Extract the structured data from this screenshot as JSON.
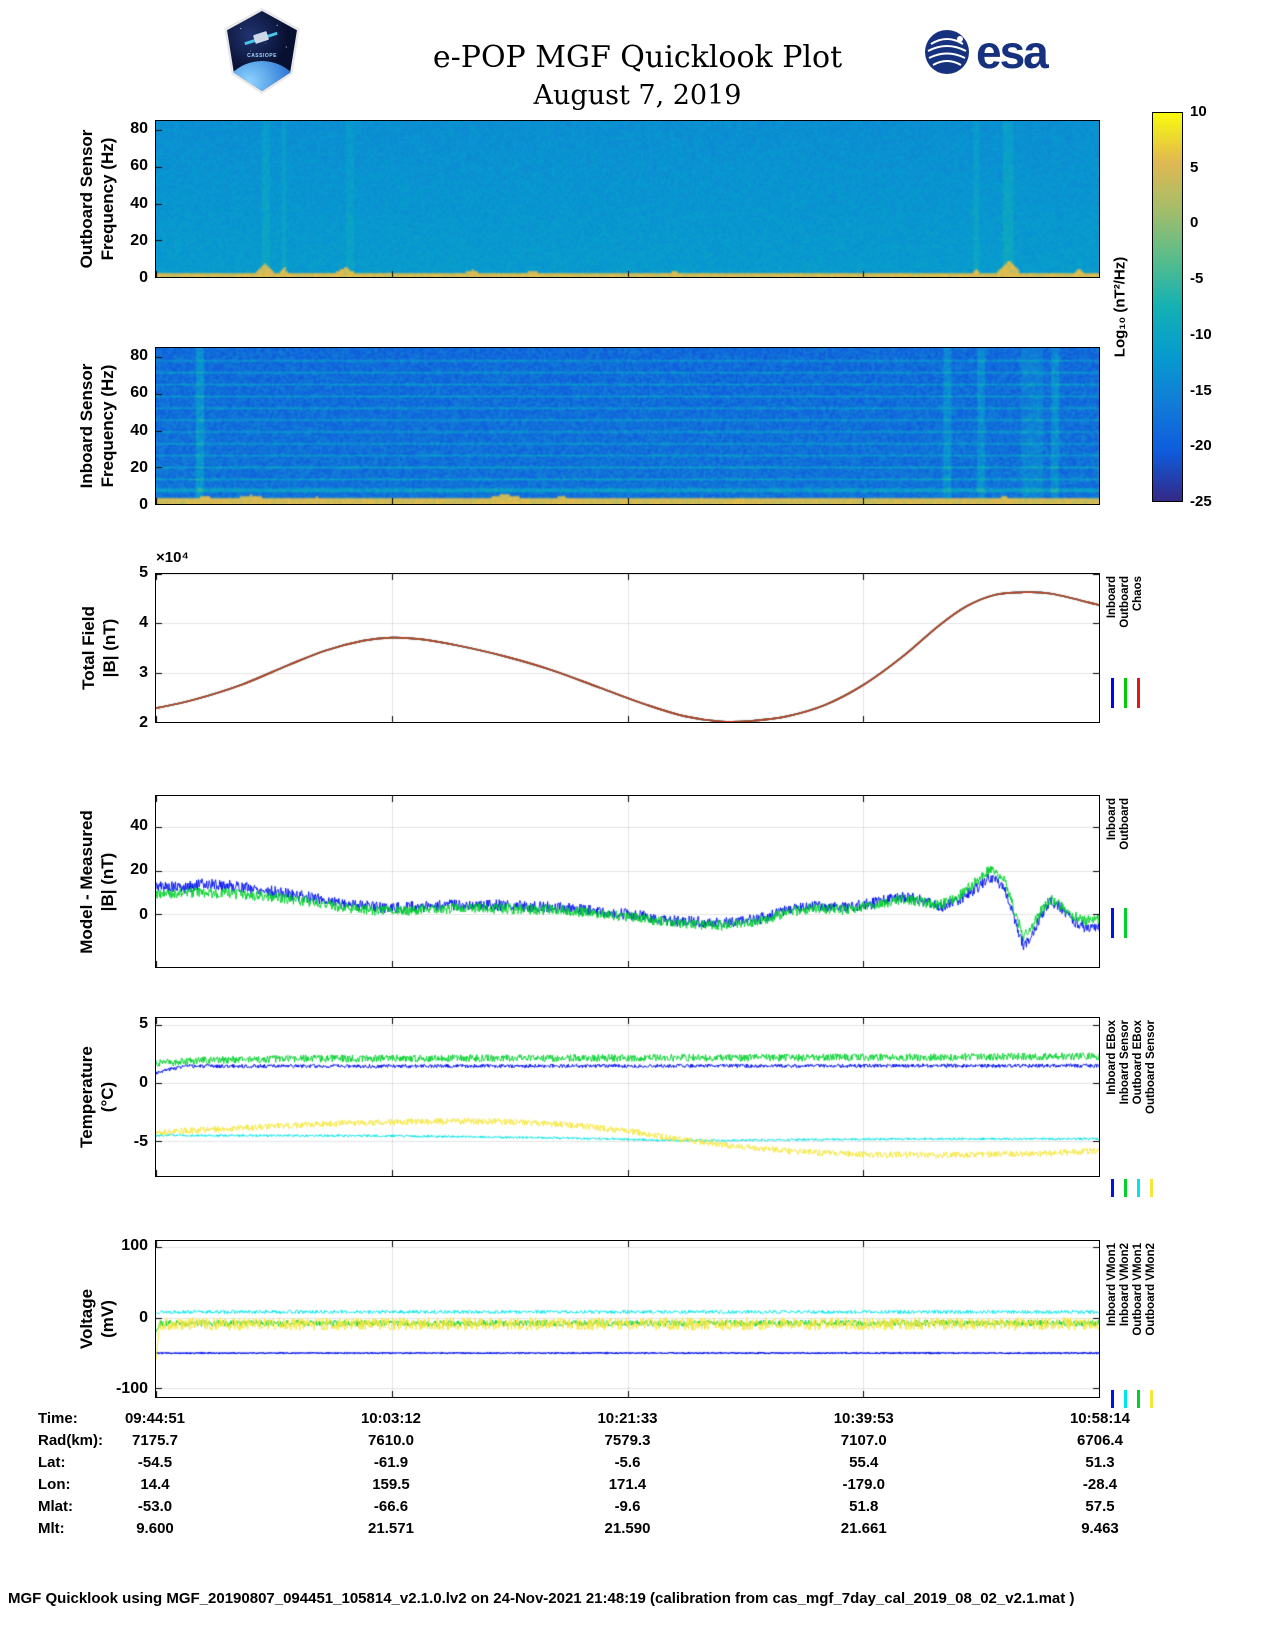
{
  "header": {
    "title": "e-POP MGF Quicklook Plot",
    "date": "August 7, 2019",
    "esa_text": "esa",
    "cassiope_label": "CASSIOPE"
  },
  "colorbar": {
    "label": "Log₁₀ (nT²/Hz)",
    "min": -25,
    "max": 10,
    "ticks": [
      10,
      5,
      0,
      -5,
      -10,
      -15,
      -20,
      -25
    ]
  },
  "chart_data": [
    {
      "id": "outboard_spectrogram",
      "type": "heatmap",
      "ylabel_line1": "Outboard Sensor",
      "ylabel_line2": "Frequency (Hz)",
      "yticks": [
        0,
        20,
        40,
        60,
        80
      ],
      "ylim": [
        0,
        85
      ],
      "value_range": [
        -25,
        10
      ],
      "heatmap": {
        "seed": 11,
        "base": -13.6,
        "grad": 1.8,
        "noise": 1.3,
        "fmax": 85,
        "band_f": 1.8,
        "band_v": 4.5,
        "band_n": 2,
        "hlines": [],
        "vlines": [
          [
            0.115,
            0.004,
            2
          ],
          [
            0.135,
            0.003,
            2
          ],
          [
            0.205,
            0.004,
            1.5
          ],
          [
            0.87,
            0.003,
            2
          ],
          [
            0.905,
            0.005,
            2.5
          ]
        ],
        "bumps": [
          [
            0.115,
            0.01,
            7
          ],
          [
            0.135,
            0.006,
            5
          ],
          [
            0.2,
            0.012,
            5
          ],
          [
            0.335,
            0.012,
            3.5
          ],
          [
            0.4,
            0.012,
            3.2
          ],
          [
            0.55,
            0.008,
            2.8
          ],
          [
            0.87,
            0.005,
            4
          ],
          [
            0.905,
            0.012,
            9
          ],
          [
            0.98,
            0.006,
            4
          ]
        ]
      }
    },
    {
      "id": "inboard_spectrogram",
      "type": "heatmap",
      "ylabel_line1": "Inboard Sensor",
      "ylabel_line2": "Frequency (Hz)",
      "yticks": [
        0,
        20,
        40,
        60,
        80
      ],
      "ylim": [
        0,
        85
      ],
      "value_range": [
        -25,
        10
      ],
      "heatmap": {
        "seed": 23,
        "base": -18.6,
        "grad": 1.2,
        "noise": 2.5,
        "fmax": 85,
        "band_f": 2.4,
        "band_v": 4.2,
        "band_n": 2,
        "hlines": [
          [
            7,
            0.7,
            6
          ],
          [
            13.5,
            0.6,
            5.5
          ],
          [
            20,
            0.6,
            5.5
          ],
          [
            26.5,
            0.6,
            5
          ],
          [
            33,
            0.6,
            5
          ],
          [
            39.5,
            0.6,
            5
          ],
          [
            46,
            0.6,
            5
          ],
          [
            52.5,
            0.6,
            5
          ],
          [
            59,
            0.6,
            5
          ],
          [
            65.5,
            0.6,
            5
          ],
          [
            72,
            0.6,
            5
          ],
          [
            78.5,
            0.6,
            5
          ]
        ],
        "vlines": [
          [
            0.045,
            0.004,
            5
          ],
          [
            0.84,
            0.004,
            4
          ],
          [
            0.875,
            0.004,
            4
          ],
          [
            0.93,
            0.012,
            2.5
          ],
          [
            0.955,
            0.004,
            4
          ]
        ],
        "bumps": [
          [
            0.05,
            0.02,
            4
          ],
          [
            0.1,
            0.03,
            4.5
          ],
          [
            0.17,
            0.02,
            3.5
          ],
          [
            0.28,
            0.015,
            3
          ],
          [
            0.37,
            0.03,
            5
          ],
          [
            0.43,
            0.02,
            4
          ],
          [
            0.62,
            0.01,
            3
          ],
          [
            0.9,
            0.01,
            4
          ]
        ]
      }
    },
    {
      "id": "total_field",
      "type": "line",
      "ylabel_line1": "Total Field",
      "ylabel_line2": "|B| (nT)",
      "exponent_label": "×10⁴",
      "yticks": [
        2,
        3,
        4,
        5
      ],
      "ylim": [
        2,
        5
      ],
      "draw_colors": [
        "#0000ff",
        "#00bb22",
        "#bf3a20"
      ],
      "legend": [
        {
          "label": "Inboard",
          "color": "#0000ff"
        },
        {
          "label": "Outboard",
          "color": "#00cc00"
        },
        {
          "label": "Chaos",
          "color": "#e01818"
        }
      ],
      "series": [
        {
          "name": "Total field model/measured overlay",
          "width": 1.7,
          "points": [
            [
              0,
              2.28
            ],
            [
              0.04,
              2.45
            ],
            [
              0.09,
              2.75
            ],
            [
              0.14,
              3.15
            ],
            [
              0.18,
              3.45
            ],
            [
              0.22,
              3.65
            ],
            [
              0.25,
              3.71
            ],
            [
              0.28,
              3.68
            ],
            [
              0.32,
              3.55
            ],
            [
              0.37,
              3.33
            ],
            [
              0.42,
              3.05
            ],
            [
              0.47,
              2.7
            ],
            [
              0.52,
              2.35
            ],
            [
              0.56,
              2.12
            ],
            [
              0.6,
              2.01
            ],
            [
              0.63,
              2.02
            ],
            [
              0.67,
              2.12
            ],
            [
              0.71,
              2.35
            ],
            [
              0.75,
              2.75
            ],
            [
              0.79,
              3.3
            ],
            [
              0.83,
              3.95
            ],
            [
              0.86,
              4.35
            ],
            [
              0.89,
              4.58
            ],
            [
              0.92,
              4.63
            ],
            [
              0.95,
              4.6
            ],
            [
              1,
              4.37
            ]
          ]
        }
      ]
    },
    {
      "id": "model_measured",
      "type": "noisyline",
      "ylabel_line1": "Model - Measured",
      "ylabel_line2": "|B| (nT)",
      "yticks": [
        0,
        20,
        40
      ],
      "ylim": [
        -24,
        54
      ],
      "legend": [
        {
          "label": "Inboard",
          "color": "#0011ee"
        },
        {
          "label": "Outboard",
          "color": "#00d02a"
        }
      ],
      "series": [
        {
          "name": "Inboard",
          "color": "#0011ee",
          "noise": 2.6,
          "seed": 5,
          "trend": [
            [
              0,
              13
            ],
            [
              0.03,
              12
            ],
            [
              0.05,
              14
            ],
            [
              0.08,
              13
            ],
            [
              0.1,
              12
            ],
            [
              0.13,
              10
            ],
            [
              0.16,
              8
            ],
            [
              0.2,
              5
            ],
            [
              0.24,
              3
            ],
            [
              0.28,
              3.5
            ],
            [
              0.33,
              4.5
            ],
            [
              0.38,
              4
            ],
            [
              0.43,
              3
            ],
            [
              0.48,
              1
            ],
            [
              0.52,
              -1
            ],
            [
              0.55,
              -3
            ],
            [
              0.6,
              -4
            ],
            [
              0.64,
              -2
            ],
            [
              0.67,
              2
            ],
            [
              0.7,
              4
            ],
            [
              0.73,
              3
            ],
            [
              0.76,
              5
            ],
            [
              0.79,
              8
            ],
            [
              0.81,
              7
            ],
            [
              0.83,
              3
            ],
            [
              0.85,
              6
            ],
            [
              0.87,
              12
            ],
            [
              0.885,
              17
            ],
            [
              0.9,
              12
            ],
            [
              0.91,
              -2
            ],
            [
              0.92,
              -14
            ],
            [
              0.93,
              -9
            ],
            [
              0.94,
              1
            ],
            [
              0.95,
              6
            ],
            [
              0.96,
              3
            ],
            [
              0.97,
              -2
            ],
            [
              0.985,
              -6
            ],
            [
              1,
              -5
            ]
          ]
        },
        {
          "name": "Outboard",
          "color": "#00d02a",
          "noise": 2.4,
          "seed": 9,
          "trend": [
            [
              0,
              9
            ],
            [
              0.04,
              10
            ],
            [
              0.08,
              9.5
            ],
            [
              0.12,
              8
            ],
            [
              0.16,
              6
            ],
            [
              0.2,
              3
            ],
            [
              0.24,
              1.5
            ],
            [
              0.28,
              2
            ],
            [
              0.33,
              3
            ],
            [
              0.38,
              2.5
            ],
            [
              0.43,
              2
            ],
            [
              0.48,
              0
            ],
            [
              0.52,
              -2
            ],
            [
              0.55,
              -4
            ],
            [
              0.6,
              -5
            ],
            [
              0.64,
              -3
            ],
            [
              0.67,
              1
            ],
            [
              0.7,
              3
            ],
            [
              0.73,
              2
            ],
            [
              0.76,
              4
            ],
            [
              0.79,
              7
            ],
            [
              0.81,
              6
            ],
            [
              0.83,
              4
            ],
            [
              0.85,
              8
            ],
            [
              0.87,
              15
            ],
            [
              0.885,
              21
            ],
            [
              0.9,
              16
            ],
            [
              0.91,
              2
            ],
            [
              0.92,
              -10
            ],
            [
              0.93,
              -5
            ],
            [
              0.94,
              3
            ],
            [
              0.95,
              7
            ],
            [
              0.96,
              4
            ],
            [
              0.97,
              0
            ],
            [
              0.985,
              -3
            ],
            [
              1,
              -2
            ]
          ]
        }
      ]
    },
    {
      "id": "temperature",
      "type": "noisyline",
      "ylabel_line1": "Temperature",
      "ylabel_line2": "(°C)",
      "yticks": [
        -5,
        0,
        5
      ],
      "ylim": [
        -8,
        5.6
      ],
      "legend": [
        {
          "label": "Inboard EBox",
          "color": "#0011ee"
        },
        {
          "label": "Inboard Sensor",
          "color": "#00d02a"
        },
        {
          "label": "Outboard EBox",
          "color": "#00e5e5"
        },
        {
          "label": "Outboard Sensor",
          "color": "#f5e63c"
        }
      ],
      "series": [
        {
          "name": "Inboard EBox",
          "color": "#0011ee",
          "noise": 0.16,
          "seed": 3,
          "lw": 1,
          "trend": [
            [
              0,
              0.9
            ],
            [
              0.015,
              1.2
            ],
            [
              0.03,
              1.45
            ],
            [
              1,
              1.5
            ]
          ]
        },
        {
          "name": "Inboard Sensor",
          "color": "#00d02a",
          "noise": 0.32,
          "seed": 4,
          "trend": [
            [
              0,
              1.7
            ],
            [
              0.05,
              1.95
            ],
            [
              0.15,
              2.1
            ],
            [
              0.4,
              2.15
            ],
            [
              0.7,
              2.2
            ],
            [
              1,
              2.3
            ]
          ]
        },
        {
          "name": "Outboard EBox",
          "color": "#00e5e5",
          "noise": 0.1,
          "seed": 6,
          "lw": 1,
          "trend": [
            [
              0,
              -4.5
            ],
            [
              0.25,
              -4.55
            ],
            [
              0.45,
              -4.75
            ],
            [
              0.55,
              -4.95
            ],
            [
              0.65,
              -4.9
            ],
            [
              0.8,
              -4.8
            ],
            [
              1,
              -4.8
            ]
          ]
        },
        {
          "name": "Outboard Sensor",
          "color": "#f5e63c",
          "noise": 0.28,
          "seed": 8,
          "trend": [
            [
              0,
              -4.25
            ],
            [
              0.08,
              -3.9
            ],
            [
              0.18,
              -3.5
            ],
            [
              0.28,
              -3.3
            ],
            [
              0.36,
              -3.3
            ],
            [
              0.44,
              -3.6
            ],
            [
              0.5,
              -4.1
            ],
            [
              0.56,
              -4.9
            ],
            [
              0.62,
              -5.5
            ],
            [
              0.68,
              -5.9
            ],
            [
              0.75,
              -6.15
            ],
            [
              0.85,
              -6.2
            ],
            [
              0.93,
              -6.1
            ],
            [
              1,
              -5.8
            ]
          ]
        }
      ]
    },
    {
      "id": "voltage",
      "type": "noisyline",
      "ylabel_line1": "Voltage",
      "ylabel_line2": "(mV)",
      "yticks": [
        -100,
        0,
        100
      ],
      "ylim": [
        -112,
        108
      ],
      "legend": [
        {
          "label": "Inboard VMon1",
          "color": "#0011ee"
        },
        {
          "label": "Inboard VMon2",
          "color": "#00e5e5"
        },
        {
          "label": "Outboard VMon1",
          "color": "#00d02a"
        },
        {
          "label": "Outboard VMon2",
          "color": "#f5e63c"
        }
      ],
      "series": [
        {
          "name": "Inboard VMon1",
          "color": "#0011ee",
          "noise": 0.7,
          "seed": 12,
          "lw": 1.2,
          "trend": [
            [
              0,
              -50
            ],
            [
              1,
              -50
            ]
          ]
        },
        {
          "name": "Inboard VMon2",
          "color": "#00e5e5",
          "noise": 2.5,
          "seed": 13,
          "trend": [
            [
              0,
              8
            ],
            [
              1,
              8
            ]
          ]
        },
        {
          "name": "Outboard VMon1",
          "color": "#00d02a",
          "noise": 4.5,
          "seed": 14,
          "trend": [
            [
              0,
              -20
            ],
            [
              0.004,
              -8
            ],
            [
              1,
              -8
            ]
          ]
        },
        {
          "name": "Outboard VMon2",
          "color": "#f5e63c",
          "noise": 9,
          "seed": 15,
          "trend": [
            [
              0,
              -55
            ],
            [
              0.004,
              -9
            ],
            [
              1,
              -9
            ]
          ]
        }
      ]
    }
  ],
  "ephemeris": {
    "rows": [
      {
        "label": "Time:",
        "values": [
          "09:44:51",
          "10:03:12",
          "10:21:33",
          "10:39:53",
          "10:58:14"
        ]
      },
      {
        "label": "Rad(km):",
        "values": [
          "7175.7",
          "7610.0",
          "7579.3",
          "7107.0",
          "6706.4"
        ]
      },
      {
        "label": "Lat:",
        "values": [
          "-54.5",
          "-61.9",
          "-5.6",
          "55.4",
          "51.3"
        ]
      },
      {
        "label": "Lon:",
        "values": [
          "14.4",
          "159.5",
          "171.4",
          "-179.0",
          "-28.4"
        ]
      },
      {
        "label": "Mlat:",
        "values": [
          "-53.0",
          "-66.6",
          "-9.6",
          "51.8",
          "57.5"
        ]
      },
      {
        "label": "Mlt:",
        "values": [
          "9.600",
          "21.571",
          "21.590",
          "21.661",
          "9.463"
        ]
      }
    ]
  },
  "footer": {
    "text": "MGF Quicklook using MGF_20190807_094451_105814_v2.1.0.lv2 on 24-Nov-2021 21:48:19 (calibration from cas_mgf_7day_cal_2019_08_02_v2.1.mat )"
  }
}
